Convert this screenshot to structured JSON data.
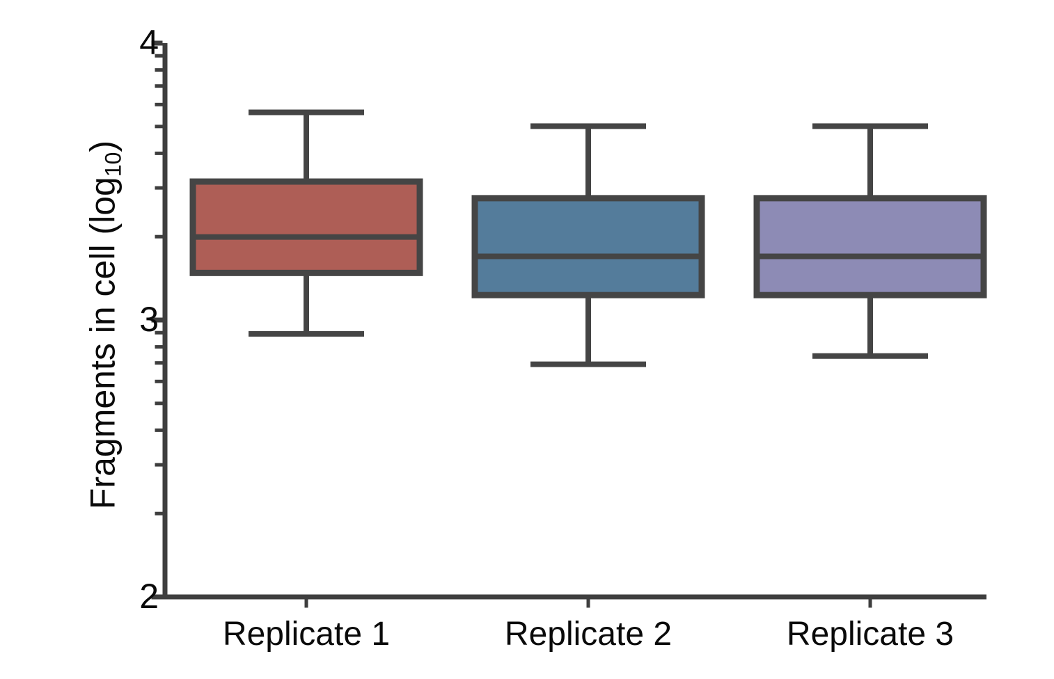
{
  "chart_data": {
    "type": "boxplot",
    "title": "",
    "ylabel": "Fragments in cell (log10)",
    "ylabel_parts": {
      "main": "Fragments in cell (log",
      "sub": "10",
      "close": ")"
    },
    "categories": [
      "Replicate 1",
      "Replicate 2",
      "Replicate 3"
    ],
    "y_axis": {
      "scale": "log10-exponent",
      "min_exp": 2,
      "max_exp": 4,
      "major_tick_labels": [
        "4",
        "3",
        "2"
      ],
      "major_tick_exponents": [
        4,
        3,
        2
      ],
      "minor_tick_mantissas": [
        2,
        3,
        4,
        5,
        6,
        7,
        8,
        9
      ]
    },
    "grid": false,
    "legend": null,
    "series": [
      {
        "name": "Replicate 1",
        "color": "#AE5E56",
        "whisker_low": 2.95,
        "q1": 3.17,
        "median": 3.3,
        "q3": 3.5,
        "whisker_high": 3.75
      },
      {
        "name": "Replicate 2",
        "color": "#547C9B",
        "whisker_low": 2.84,
        "q1": 3.09,
        "median": 3.23,
        "q3": 3.44,
        "whisker_high": 3.7
      },
      {
        "name": "Replicate 3",
        "color": "#8D8BB5",
        "whisker_low": 2.87,
        "q1": 3.09,
        "median": 3.23,
        "q3": 3.44,
        "whisker_high": 3.7
      }
    ],
    "styles": {
      "box_border_color": "#454545",
      "whisker_color": "#454545",
      "median_color": "#454545",
      "axis_color": "#3E3E3E",
      "text_color": "#0A0A0A",
      "background": "#FFFFFF"
    }
  }
}
